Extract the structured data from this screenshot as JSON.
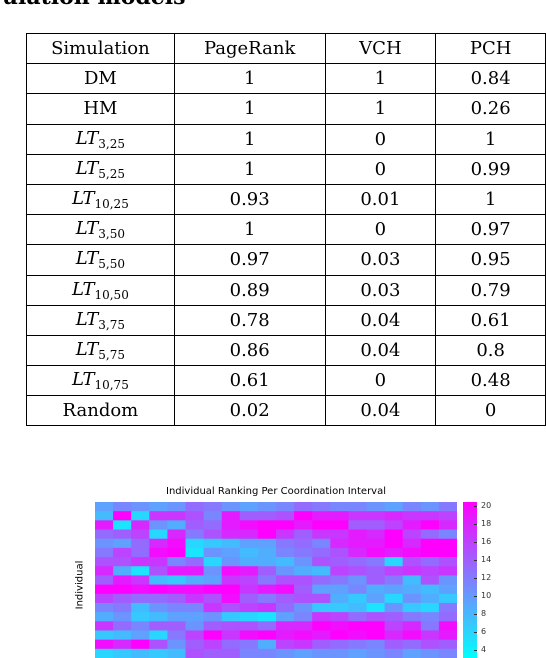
{
  "heading_fragment": "ulation models",
  "table": {
    "headers": [
      "Simulation",
      "PageRank",
      "VCH",
      "PCH"
    ],
    "rows": [
      {
        "name": "DM",
        "base": "",
        "sub": "",
        "pagerank": "1",
        "vch": "1",
        "pch": "0.84"
      },
      {
        "name": "HM",
        "base": "",
        "sub": "",
        "pagerank": "1",
        "vch": "1",
        "pch": "0.26"
      },
      {
        "name": "",
        "base": "LT",
        "sub": "3,25",
        "pagerank": "1",
        "vch": "0",
        "pch": "1"
      },
      {
        "name": "",
        "base": "LT",
        "sub": "5,25",
        "pagerank": "1",
        "vch": "0",
        "pch": "0.99"
      },
      {
        "name": "",
        "base": "LT",
        "sub": "10,25",
        "pagerank": "0.93",
        "vch": "0.01",
        "pch": "1"
      },
      {
        "name": "",
        "base": "LT",
        "sub": "3,50",
        "pagerank": "1",
        "vch": "0",
        "pch": "0.97"
      },
      {
        "name": "",
        "base": "LT",
        "sub": "5,50",
        "pagerank": "0.97",
        "vch": "0.03",
        "pch": "0.95"
      },
      {
        "name": "",
        "base": "LT",
        "sub": "10,50",
        "pagerank": "0.89",
        "vch": "0.03",
        "pch": "0.79"
      },
      {
        "name": "",
        "base": "LT",
        "sub": "3,75",
        "pagerank": "0.78",
        "vch": "0.04",
        "pch": "0.61"
      },
      {
        "name": "",
        "base": "LT",
        "sub": "5,75",
        "pagerank": "0.86",
        "vch": "0.04",
        "pch": "0.8"
      },
      {
        "name": "",
        "base": "LT",
        "sub": "10,75",
        "pagerank": "0.61",
        "vch": "0",
        "pch": "0.48"
      },
      {
        "name": "Random",
        "base": "",
        "sub": "",
        "pagerank": "0.02",
        "vch": "0.04",
        "pch": "0"
      }
    ]
  },
  "figure": {
    "title": "Individual Ranking Per Coordination Interval",
    "ylabel": "Individual",
    "colormap": {
      "low": "#00ffff",
      "high": "#ff00ff"
    },
    "colorbar_ticks": [
      "20",
      "18",
      "16",
      "14",
      "12",
      "10",
      "8",
      "6",
      "4"
    ],
    "value_range": [
      1,
      20
    ],
    "columns": 20,
    "rows": [
      [
        8,
        10,
        9,
        8,
        9,
        12,
        11,
        9,
        8,
        9,
        10,
        12,
        11,
        10,
        10,
        9,
        8,
        10,
        9,
        11
      ],
      [
        6,
        20,
        4,
        16,
        16,
        14,
        10,
        18,
        13,
        13,
        14,
        20,
        18,
        18,
        16,
        16,
        17,
        16,
        16,
        15
      ],
      [
        18,
        3,
        17,
        9,
        7,
        13,
        12,
        18,
        19,
        20,
        20,
        18,
        20,
        20,
        13,
        13,
        15,
        18,
        20,
        17
      ],
      [
        12,
        13,
        15,
        4,
        17,
        11,
        14,
        17,
        17,
        20,
        16,
        13,
        16,
        16,
        18,
        17,
        20,
        15,
        12,
        10
      ],
      [
        9,
        8,
        12,
        17,
        19,
        4,
        5,
        6,
        8,
        8,
        11,
        12,
        10,
        17,
        18,
        18,
        20,
        17,
        20,
        20
      ],
      [
        11,
        15,
        12,
        19,
        20,
        3,
        9,
        8,
        6,
        7,
        10,
        11,
        12,
        14,
        17,
        19,
        18,
        19,
        20,
        20
      ],
      [
        14,
        14,
        16,
        16,
        10,
        12,
        4,
        9,
        7,
        7,
        6,
        9,
        14,
        13,
        12,
        11,
        4,
        14,
        12,
        14
      ],
      [
        17,
        7,
        3,
        14,
        18,
        18,
        9,
        19,
        18,
        13,
        9,
        7,
        6,
        15,
        14,
        13,
        15,
        16,
        15,
        16
      ],
      [
        13,
        18,
        16,
        6,
        5,
        7,
        8,
        16,
        15,
        11,
        14,
        14,
        12,
        11,
        9,
        13,
        11,
        6,
        14,
        9
      ],
      [
        20,
        20,
        19,
        20,
        19,
        19,
        20,
        20,
        16,
        18,
        19,
        13,
        8,
        8,
        10,
        7,
        8,
        7,
        6,
        8
      ],
      [
        15,
        13,
        12,
        12,
        13,
        16,
        14,
        19,
        13,
        11,
        13,
        14,
        14,
        7,
        5,
        8,
        4,
        9,
        7,
        5
      ],
      [
        10,
        11,
        6,
        9,
        10,
        10,
        16,
        14,
        15,
        16,
        12,
        9,
        5,
        5,
        6,
        3,
        9,
        5,
        4,
        11
      ],
      [
        7,
        9,
        5,
        6,
        8,
        8,
        9,
        5,
        4,
        3,
        8,
        10,
        16,
        15,
        12,
        14,
        13,
        11,
        10,
        12
      ],
      [
        16,
        12,
        10,
        13,
        13,
        9,
        13,
        14,
        14,
        12,
        17,
        17,
        20,
        19,
        20,
        20,
        15,
        17,
        11,
        19
      ],
      [
        5,
        6,
        8,
        4,
        11,
        15,
        20,
        16,
        19,
        20,
        18,
        19,
        18,
        20,
        19,
        20,
        17,
        19,
        16,
        18
      ],
      [
        19,
        17,
        20,
        14,
        9,
        13,
        15,
        12,
        11,
        7,
        15,
        16,
        13,
        12,
        11,
        10,
        13,
        12,
        14,
        13
      ],
      [
        4,
        5,
        6,
        5,
        6,
        14,
        13,
        13,
        10,
        10,
        9,
        8,
        9,
        9,
        8,
        9,
        10,
        8,
        9,
        10
      ]
    ]
  }
}
